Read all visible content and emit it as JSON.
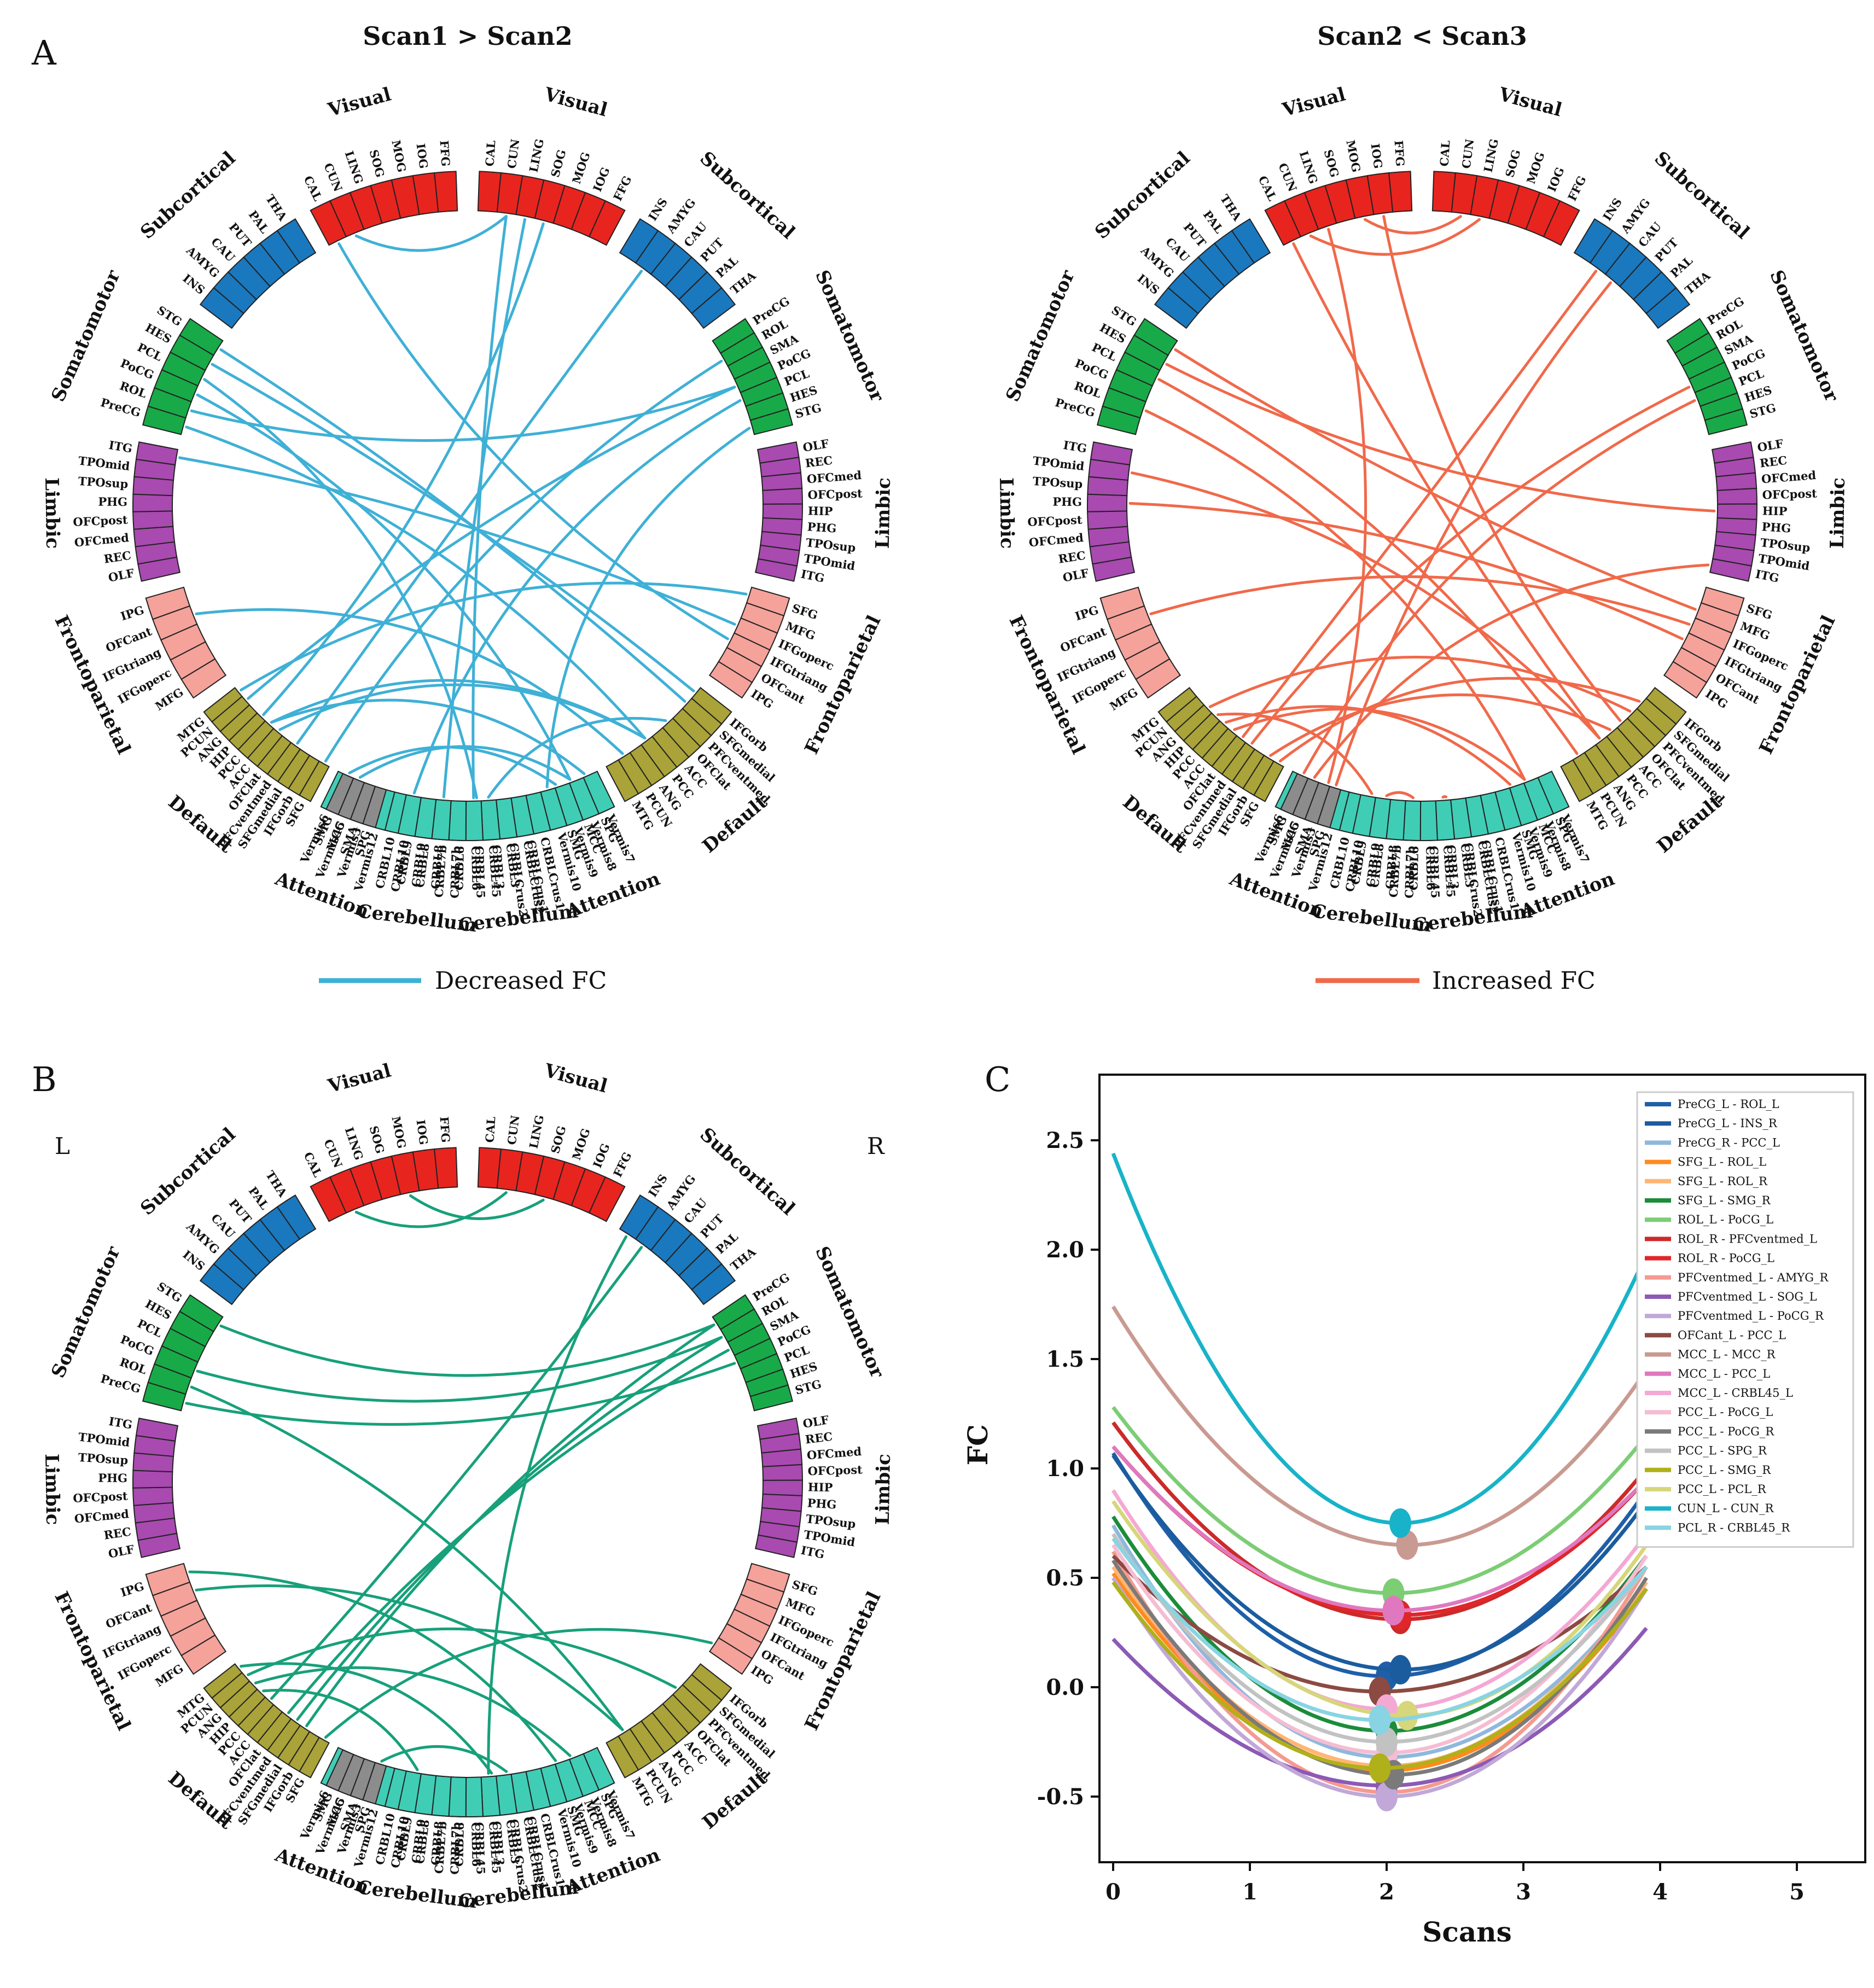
{
  "panels": {
    "A": "A",
    "B": "B",
    "C": "C"
  },
  "colors": {
    "decreased": "#3fb0d6",
    "increased": "#f0694a",
    "panelB": "#17a07a",
    "Visual": "#e8241f",
    "Subcortical": "#1a78be",
    "Somatomotor": "#18aa48",
    "Limbic": "#a84ab0",
    "Frontoparietal": "#f4a29a",
    "Default": "#a9a339",
    "Attention": "#8c8c8c",
    "Cerebellum": "#40cdb6"
  },
  "chord_titles": {
    "left": "Scan1 > Scan2",
    "right": "Scan2 < Scan3"
  },
  "chord_legend": {
    "decreased": "Decreased FC",
    "increased": "Increased FC"
  },
  "hemisphere_labels": {
    "left": "L",
    "right": "R"
  },
  "networks": {
    "left_side": [
      {
        "name": "Visual",
        "rois": [
          "CAL",
          "CUN",
          "LING",
          "SOG",
          "MOG",
          "IOG",
          "FFG"
        ]
      },
      {
        "name": "Subcortical",
        "rois": [
          "INS",
          "AMYG",
          "CAU",
          "PUT",
          "PAL",
          "THA"
        ]
      },
      {
        "name": "Somatomotor",
        "rois": [
          "PreCG",
          "ROL",
          "PoCG",
          "PCL",
          "HES",
          "STG"
        ]
      },
      {
        "name": "Limbic",
        "rois": [
          "OLF",
          "REC",
          "OFCmed",
          "OFCpost",
          "PHG",
          "TPOsup",
          "TPOmid",
          "ITG"
        ]
      },
      {
        "name": "Frontoparietal",
        "rois": [
          "MFG",
          "IFGoperc",
          "IFGtriang",
          "OFCant",
          "IPG"
        ]
      },
      {
        "name": "Default",
        "rois": [
          "SFG",
          "IFGorb",
          "SFGmedial",
          "PFCventmed",
          "OFClat",
          "ACC",
          "PCC",
          "HIP",
          "ANG",
          "PCUN",
          "MTG"
        ]
      },
      {
        "name": "Attention",
        "rois": [
          "SPG",
          "SMA",
          "MCC",
          "SMG"
        ]
      },
      {
        "name": "Cerebellum",
        "rois": [
          "Vermis7",
          "Vermis8",
          "Vermis9",
          "Vermis10",
          "CRBLCrus1",
          "CRBLCrus2",
          "CRBL3",
          "CRBL45",
          "CRBL6",
          "CRBL7b",
          "CRBL8",
          "CRBL9",
          "CRBL10"
        ]
      }
    ],
    "right_side": [
      {
        "name": "Visual",
        "rois": [
          "CAL",
          "CUN",
          "LING",
          "SOG",
          "MOG",
          "IOG",
          "FFG"
        ]
      },
      {
        "name": "Subcortical",
        "rois": [
          "INS",
          "AMYG",
          "CAU",
          "PUT",
          "PAL",
          "THA"
        ]
      },
      {
        "name": "Somatomotor",
        "rois": [
          "PreCG",
          "ROL",
          "SMA",
          "PoCG",
          "PCL",
          "HES",
          "STG"
        ]
      },
      {
        "name": "Limbic",
        "rois": [
          "OLF",
          "REC",
          "OFCmed",
          "OFCpost",
          "HIP",
          "PHG",
          "TPOsup",
          "TPOmid",
          "ITG"
        ]
      },
      {
        "name": "Frontoparietal",
        "rois": [
          "SFG",
          "MFG",
          "IFGoperc",
          "IFGtriang",
          "OFCant",
          "IPG"
        ]
      },
      {
        "name": "Default",
        "rois": [
          "IFGorb",
          "SFGmedial",
          "PFCventmed",
          "OFClat",
          "ACC",
          "PCC",
          "ANG",
          "PCUN",
          "MTG"
        ]
      },
      {
        "name": "Attention",
        "rois": [
          "SPG",
          "MCC",
          "SMG"
        ]
      },
      {
        "name": "Cerebellum",
        "rois": [
          "CRBLCrus1",
          "CRBLCrus2",
          "CRBL3",
          "CRBL45",
          "CRBL6",
          "CRBL7b",
          "CRBL8",
          "CRBL9",
          "CRBL10",
          "Vermis12",
          "Vermis3",
          "Vermis45",
          "Vermis6"
        ]
      }
    ]
  },
  "connections": {
    "A1": [
      [
        "L:PreCG",
        "R:PCC"
      ],
      [
        "L:ROL",
        "R:PoCG"
      ],
      [
        "L:PoCG",
        "R:MCC"
      ],
      [
        "L:PCL",
        "R:CRBL45"
      ],
      [
        "L:HES",
        "R:IFGorb"
      ],
      [
        "L:STG",
        "R:SFGmedial"
      ],
      [
        "L:ITG",
        "R:IFGoperc"
      ],
      [
        "L:SFG",
        "R:ROL"
      ],
      [
        "L:PFCventmed",
        "R:AMYG"
      ],
      [
        "L:ACC",
        "R:PCC"
      ],
      [
        "L:HIP",
        "R:SOG"
      ],
      [
        "L:PCUN",
        "R:PoCG"
      ],
      [
        "L:MTG",
        "R:SFG"
      ],
      [
        "L:MCC",
        "R:MCC"
      ],
      [
        "L:CRBL6",
        "R:CUN"
      ],
      [
        "L:CRBL8",
        "R:LING"
      ],
      [
        "L:CRBL10",
        "R:PCL"
      ],
      [
        "L:CUN",
        "R:CUN"
      ],
      [
        "L:CAL",
        "R:IFGtriang"
      ],
      [
        "L:SMG",
        "R:SMG"
      ],
      [
        "L:CRBL45",
        "R:OFClat"
      ],
      [
        "L:OFCant",
        "R:PCUN"
      ],
      [
        "L:Vermis10",
        "R:STG"
      ],
      [
        "L:PCC",
        "R:PCC"
      ],
      [
        "L:PCC",
        "R:SPG"
      ]
    ],
    "A2": [
      [
        "L:STG",
        "R:MFG"
      ],
      [
        "L:HES",
        "R:HIP"
      ],
      [
        "L:PCL",
        "R:PCUN"
      ],
      [
        "L:ROL",
        "R:MCC"
      ],
      [
        "L:TPOmid",
        "R:PCC"
      ],
      [
        "L:OFCant",
        "R:IFGoperc"
      ],
      [
        "L:SFG",
        "R:SFGmedial"
      ],
      [
        "L:IFGorb",
        "R:ACC"
      ],
      [
        "L:PFCventmed",
        "R:PoCG"
      ],
      [
        "L:OFClat",
        "R:AMYG"
      ],
      [
        "L:ACC",
        "R:MCC"
      ],
      [
        "L:PCC",
        "R:SMG"
      ],
      [
        "L:SPG",
        "R:CAU"
      ],
      [
        "L:MCC",
        "R:ITG"
      ],
      [
        "L:SMG",
        "R:PCL"
      ],
      [
        "L:CRBL45",
        "R:CRBL3"
      ],
      [
        "L:CRBL7b",
        "R:CRBL8"
      ],
      [
        "L:MOG",
        "R:CUN"
      ],
      [
        "L:LING",
        "R:Vermis3"
      ],
      [
        "L:CUN",
        "R:LING"
      ],
      [
        "L:CAL",
        "R:PCC"
      ],
      [
        "L:IOG",
        "R:OFClat"
      ],
      [
        "L:ANG",
        "R:PFCventmed"
      ],
      [
        "L:PHG",
        "R:IFGtriang"
      ],
      [
        "L:HIP",
        "R:CRBL9"
      ]
    ],
    "B": [
      [
        "L:PreCG",
        "R:PoCG"
      ],
      [
        "L:ROL",
        "R:PCUN"
      ],
      [
        "L:PoCG",
        "R:ROL"
      ],
      [
        "L:STG",
        "R:PreCG"
      ],
      [
        "L:SFG",
        "R:IPG"
      ],
      [
        "L:SFGmedial",
        "R:PreCG"
      ],
      [
        "L:PFCventmed",
        "R:ROL"
      ],
      [
        "L:OFClat",
        "R:SMA"
      ],
      [
        "L:PCC",
        "R:AMYG"
      ],
      [
        "L:ANG",
        "R:MCC"
      ],
      [
        "L:MTG",
        "R:CRBL3"
      ],
      [
        "L:SPG",
        "R:CRBLCrus2"
      ],
      [
        "L:OFCant",
        "R:PCUN"
      ],
      [
        "L:CUN",
        "R:CUN"
      ],
      [
        "L:MOG",
        "R:SOG"
      ],
      [
        "L:CRBL45",
        "R:INS"
      ],
      [
        "L:IPG",
        "R:SMG"
      ],
      [
        "L:HIP",
        "R:CRBL9"
      ],
      [
        "L:PCUN",
        "R:PFCventmed"
      ]
    ]
  },
  "chart_data": {
    "type": "line",
    "xlabel": "Scans",
    "ylabel": "FC",
    "xlim": [
      -0.1,
      5.5
    ],
    "ylim": [
      -0.8,
      2.8
    ],
    "xticks": [
      "0",
      "1",
      "2",
      "3",
      "4",
      "5"
    ],
    "yticks": [
      "-0.5",
      "0.0",
      "0.5",
      "1.0",
      "1.5",
      "2.0",
      "2.5"
    ],
    "curve_x_range": [
      0,
      3.9
    ],
    "series": [
      {
        "name": "PreCG_L - ROL_L",
        "color": "#1f5fa8",
        "start": 1.07,
        "vertex": [
          2.0,
          0.05
        ],
        "end": 0.9
      },
      {
        "name": "PreCG_L - INS_R",
        "color": "#1b5c9e",
        "start": 1.06,
        "vertex": [
          2.1,
          0.08
        ],
        "end": 0.85
      },
      {
        "name": "PreCG_R - PCC_L",
        "color": "#8fb8dc",
        "start": 0.74,
        "vertex": [
          2.0,
          -0.32
        ],
        "end": 0.48
      },
      {
        "name": "SFG_L - ROL_L",
        "color": "#ff8a1f",
        "start": 0.52,
        "vertex": [
          2.0,
          -0.38
        ],
        "end": 0.45
      },
      {
        "name": "SFG_L - ROL_R",
        "color": "#ffb673",
        "start": 0.55,
        "vertex": [
          2.0,
          -0.36
        ],
        "end": 0.48
      },
      {
        "name": "SFG_L - SMG_R",
        "color": "#1c8c3a",
        "start": 0.78,
        "vertex": [
          2.0,
          -0.2
        ],
        "end": 0.6
      },
      {
        "name": "ROL_L - PoCG_L",
        "color": "#7ccd74",
        "start": 1.28,
        "vertex": [
          2.05,
          0.43
        ],
        "end": 1.15
      },
      {
        "name": "ROL_R - PFCventmed_L",
        "color": "#cc2a2a",
        "start": 1.21,
        "vertex": [
          2.1,
          0.31
        ],
        "end": 1.0
      },
      {
        "name": "ROL_R - PoCG_L",
        "color": "#e0262a",
        "start": 1.1,
        "vertex": [
          2.1,
          0.33
        ],
        "end": 0.95
      },
      {
        "name": "PFCventmed_L - AMYG_R",
        "color": "#f59a90",
        "start": 0.62,
        "vertex": [
          2.0,
          -0.48
        ],
        "end": 0.55
      },
      {
        "name": "PFCventmed_L - SOG_L",
        "color": "#8c5ab5",
        "start": 0.22,
        "vertex": [
          2.0,
          -0.45
        ],
        "end": 0.27
      },
      {
        "name": "PFCventmed_L - PoCG_R",
        "color": "#c1a8d8",
        "start": 0.5,
        "vertex": [
          2.0,
          -0.5
        ],
        "end": 0.45
      },
      {
        "name": "OFCant_L - PCC_L",
        "color": "#8b4a42",
        "start": 0.6,
        "vertex": [
          1.95,
          -0.02
        ],
        "end": 0.55
      },
      {
        "name": "MCC_L - MCC_R",
        "color": "#c99a92",
        "start": 1.74,
        "vertex": [
          2.15,
          0.65
        ],
        "end": 1.45
      },
      {
        "name": "MCC_L - PCC_L",
        "color": "#e078bf",
        "start": 1.1,
        "vertex": [
          2.05,
          0.35
        ],
        "end": 0.95
      },
      {
        "name": "MCC_L - CRBL45_L",
        "color": "#f4a8d4",
        "start": 0.9,
        "vertex": [
          2.0,
          -0.1
        ],
        "end": 0.7
      },
      {
        "name": "PCC_L - PoCG_L",
        "color": "#f6bcd2",
        "start": 0.65,
        "vertex": [
          2.0,
          -0.3
        ],
        "end": 0.6
      },
      {
        "name": "PCC_L - PoCG_R",
        "color": "#7a7a7a",
        "start": 0.58,
        "vertex": [
          2.05,
          -0.4
        ],
        "end": 0.5
      },
      {
        "name": "PCC_L - SPG_R",
        "color": "#c2c2c2",
        "start": 0.7,
        "vertex": [
          2.0,
          -0.25
        ],
        "end": 0.55
      },
      {
        "name": "PCC_L - SMG_R",
        "color": "#b0b01a",
        "start": 0.48,
        "vertex": [
          1.95,
          -0.37
        ],
        "end": 0.45
      },
      {
        "name": "PCC_L - PCL_R",
        "color": "#d6d67a",
        "start": 0.85,
        "vertex": [
          2.15,
          -0.13
        ],
        "end": 0.65
      },
      {
        "name": "CUN_L - CUN_R",
        "color": "#18b3c8",
        "start": 2.44,
        "vertex": [
          2.1,
          0.75
        ],
        "end": 1.98
      },
      {
        "name": "PCL_R - CRBL45_R",
        "color": "#88d4e2",
        "start": 0.68,
        "vertex": [
          1.95,
          -0.15
        ],
        "end": 0.55
      }
    ]
  }
}
